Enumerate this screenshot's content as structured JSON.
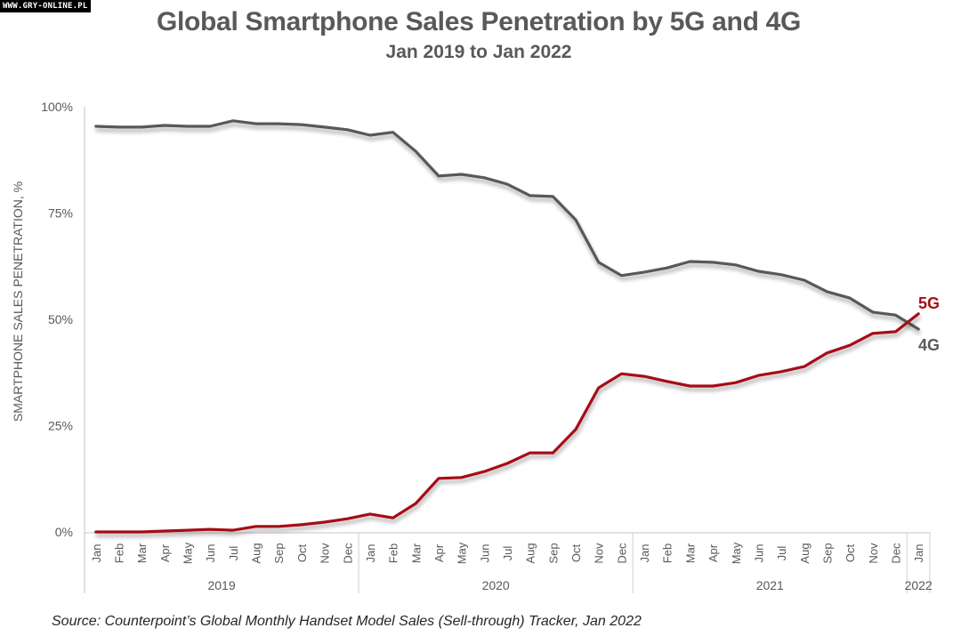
{
  "watermark": "WWW.GRY-ONLINE.PL",
  "source": "Source: Counterpoint’s Global Monthly Handset Model Sales (Sell-through) Tracker, Jan 2022",
  "chart_data": {
    "type": "line",
    "title": "Global Smartphone Sales Penetration by 5G and 4G",
    "subtitle": "Jan 2019 to Jan 2022",
    "xlabel": "",
    "ylabel": "SMARTPHONE SALES PENETRATION, %",
    "ylim": [
      0,
      100
    ],
    "yticks": [
      0,
      25,
      50,
      75,
      100
    ],
    "ytick_labels": [
      "0%",
      "25%",
      "50%",
      "75%",
      "100%"
    ],
    "grid": false,
    "legend": "inline-end-labels",
    "x": [
      "Jan",
      "Feb",
      "Mar",
      "Apr",
      "May",
      "Jun",
      "Jul",
      "Aug",
      "Sep",
      "Oct",
      "Nov",
      "Dec",
      "Jan",
      "Feb",
      "Mar",
      "Apr",
      "May",
      "Jun",
      "Jul",
      "Aug",
      "Sep",
      "Oct",
      "Nov",
      "Dec",
      "Jan",
      "Feb",
      "Mar",
      "Apr",
      "May",
      "Jun",
      "Jul",
      "Aug",
      "Sep",
      "Oct",
      "Nov",
      "Dec",
      "Jan"
    ],
    "year_groups": [
      {
        "label": "2019",
        "count": 12
      },
      {
        "label": "2020",
        "count": 12
      },
      {
        "label": "2021",
        "count": 12
      },
      {
        "label": "2022",
        "count": 1
      }
    ],
    "series": [
      {
        "name": "4G",
        "color": "#595959",
        "values": [
          95.4,
          95.2,
          95.2,
          95.6,
          95.4,
          95.4,
          96.7,
          96.0,
          96.0,
          95.8,
          95.2,
          94.6,
          93.3,
          94.0,
          89.5,
          83.7,
          84.1,
          83.3,
          81.8,
          79.1,
          78.9,
          73.4,
          63.4,
          60.3,
          61.1,
          62.1,
          63.6,
          63.4,
          62.8,
          61.3,
          60.5,
          59.2,
          56.5,
          55.0,
          51.7,
          51.0,
          47.7
        ]
      },
      {
        "name": "5G",
        "color": "#a50f15",
        "values": [
          0.0,
          0.0,
          0.0,
          0.2,
          0.4,
          0.6,
          0.4,
          1.3,
          1.3,
          1.7,
          2.3,
          3.1,
          4.2,
          3.3,
          6.7,
          12.6,
          12.8,
          14.2,
          16.1,
          18.6,
          18.6,
          24.1,
          33.9,
          37.2,
          36.6,
          35.4,
          34.3,
          34.3,
          35.1,
          36.8,
          37.7,
          38.9,
          42.1,
          43.9,
          46.7,
          47.1,
          51.3
        ]
      }
    ]
  }
}
